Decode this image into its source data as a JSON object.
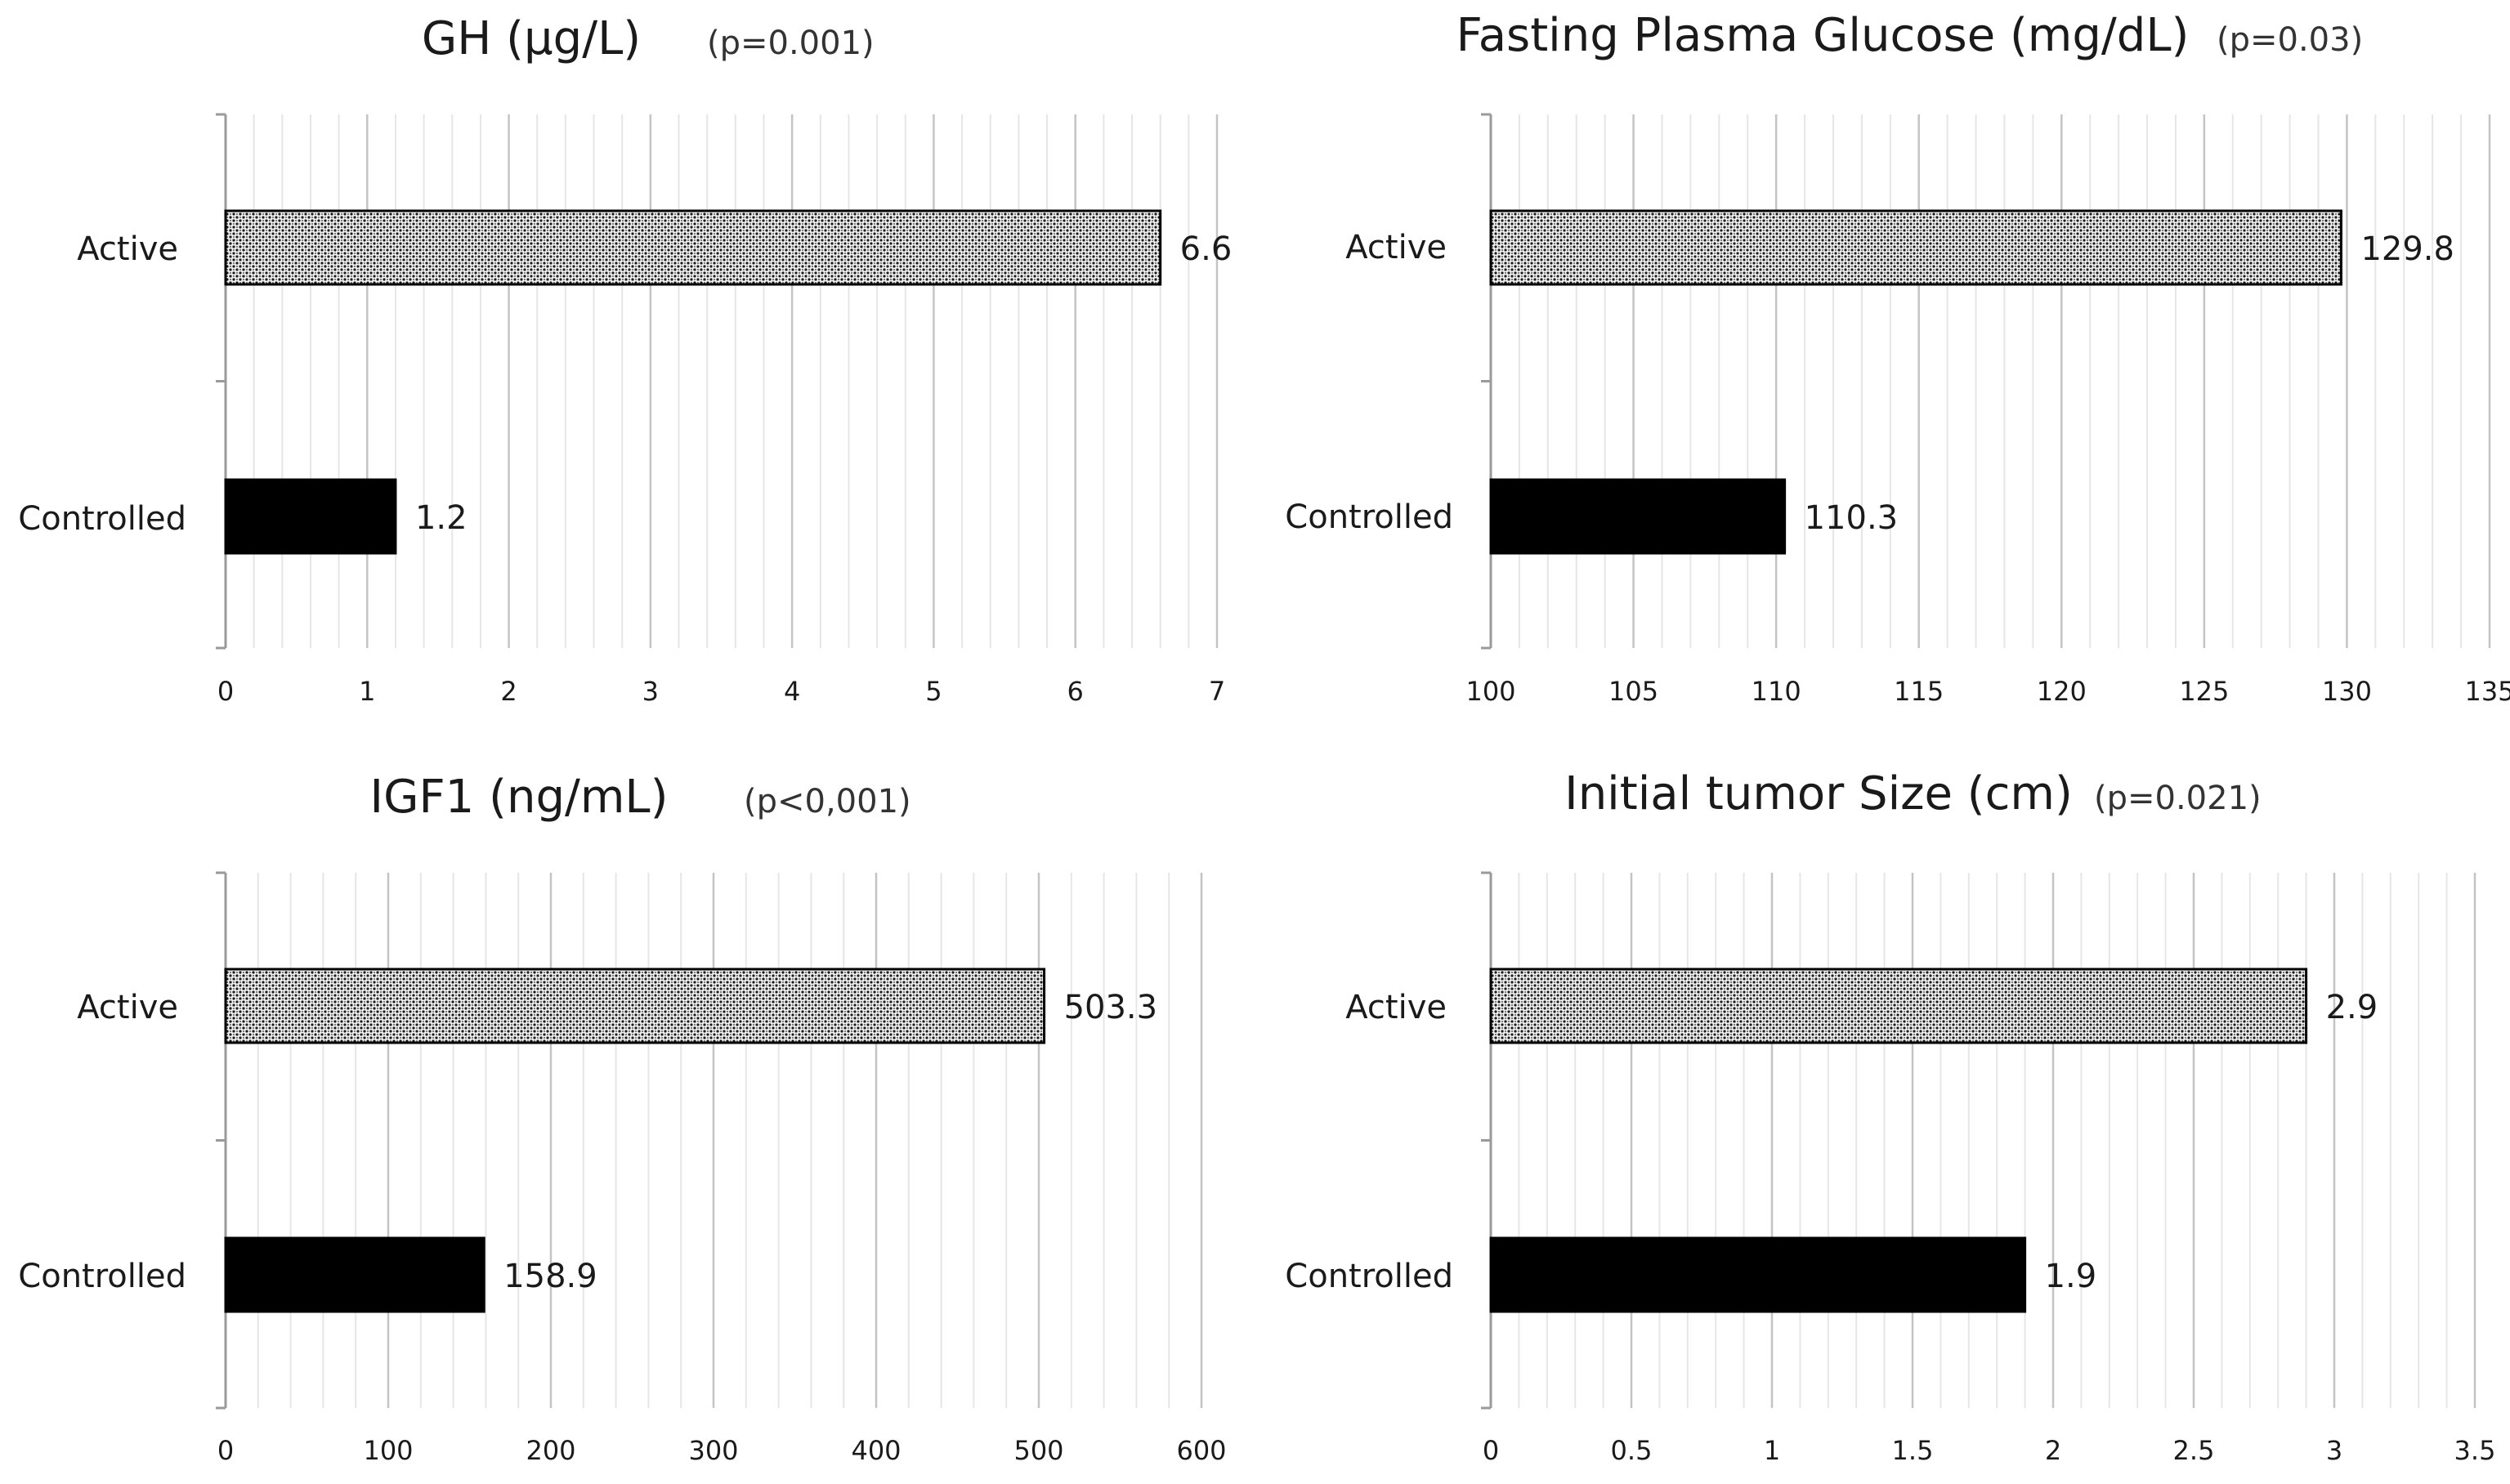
{
  "chart_data": [
    {
      "type": "bar",
      "orientation": "horizontal",
      "title": "GH (μg/L)",
      "annotation": "(p=0.001)",
      "categories": [
        "Active",
        "Controlled"
      ],
      "values": [
        6.6,
        1.2
      ],
      "value_labels": [
        "6.6",
        "1.2"
      ],
      "xlim": [
        0,
        7
      ],
      "ticks": [
        0,
        1,
        2,
        3,
        4,
        5,
        6,
        7
      ],
      "tick_labels": [
        "0",
        "1",
        "2",
        "3",
        "4",
        "5",
        "6",
        "7"
      ],
      "minor_ticks_per_major": 5,
      "grid": true
    },
    {
      "type": "bar",
      "orientation": "horizontal",
      "title": "Fasting Plasma Glucose (mg/dL)",
      "annotation": "(p=0.03)",
      "categories": [
        "Active",
        "Controlled"
      ],
      "values": [
        129.8,
        110.3
      ],
      "value_labels": [
        "129.8",
        "110.3"
      ],
      "xlim": [
        100,
        135
      ],
      "ticks": [
        100,
        105,
        110,
        115,
        120,
        125,
        130,
        135
      ],
      "tick_labels": [
        "100",
        "105",
        "110",
        "115",
        "120",
        "125",
        "130",
        "135"
      ],
      "minor_ticks_per_major": 5,
      "grid": true
    },
    {
      "type": "bar",
      "orientation": "horizontal",
      "title": "IGF1 (ng/mL)",
      "annotation": "(p<0,001)",
      "categories": [
        "Active",
        "Controlled"
      ],
      "values": [
        503.3,
        158.9
      ],
      "value_labels": [
        "503.3",
        "158.9"
      ],
      "xlim": [
        0,
        600
      ],
      "ticks": [
        0,
        100,
        200,
        300,
        400,
        500,
        600
      ],
      "tick_labels": [
        "0",
        "100",
        "200",
        "300",
        "400",
        "500",
        "600"
      ],
      "minor_ticks_per_major": 5,
      "grid": true
    },
    {
      "type": "bar",
      "orientation": "horizontal",
      "title": "Initial tumor Size (cm)",
      "annotation": "(p=0.021)",
      "categories": [
        "Active",
        "Controlled"
      ],
      "values": [
        2.9,
        1.9
      ],
      "value_labels": [
        "2.9",
        "1.9"
      ],
      "xlim": [
        0,
        3.5
      ],
      "ticks": [
        0,
        0.5,
        1,
        1.5,
        2,
        2.5,
        3,
        3.5
      ],
      "tick_labels": [
        "0",
        "0.5",
        "1",
        "1.5",
        "2",
        "2.5",
        "3",
        "3.5"
      ],
      "minor_ticks_per_major": 5,
      "grid": true
    }
  ],
  "series_styles": {
    "Active": {
      "fill_pattern": "dotted-stipple",
      "color": "#8c8c8c",
      "stroke": "#000000"
    },
    "Controlled": {
      "fill_pattern": "solid",
      "color": "#000000",
      "stroke": "#000000"
    }
  }
}
